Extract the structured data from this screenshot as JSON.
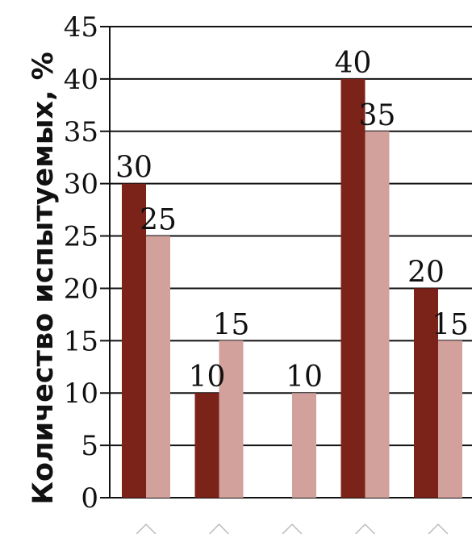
{
  "chart_data": {
    "type": "bar",
    "title": "",
    "xlabel": "",
    "ylabel": "Количество испытуемых, %",
    "ylim": [
      0,
      45
    ],
    "yticks": [
      "0",
      "5",
      "10",
      "15",
      "20",
      "25",
      "30",
      "35",
      "40",
      "45"
    ],
    "grid": true,
    "categories": [
      "",
      "",
      "",
      "",
      ""
    ],
    "series": [
      {
        "color": "#7b2219",
        "values": [
          30,
          10,
          0,
          40,
          20
        ],
        "labels": [
          "30",
          "10",
          "",
          "40",
          "20"
        ]
      },
      {
        "color": "#d2a19c",
        "values": [
          25,
          15,
          10,
          35,
          15
        ],
        "labels": [
          "25",
          "15",
          "10",
          "35",
          "15"
        ]
      }
    ]
  }
}
